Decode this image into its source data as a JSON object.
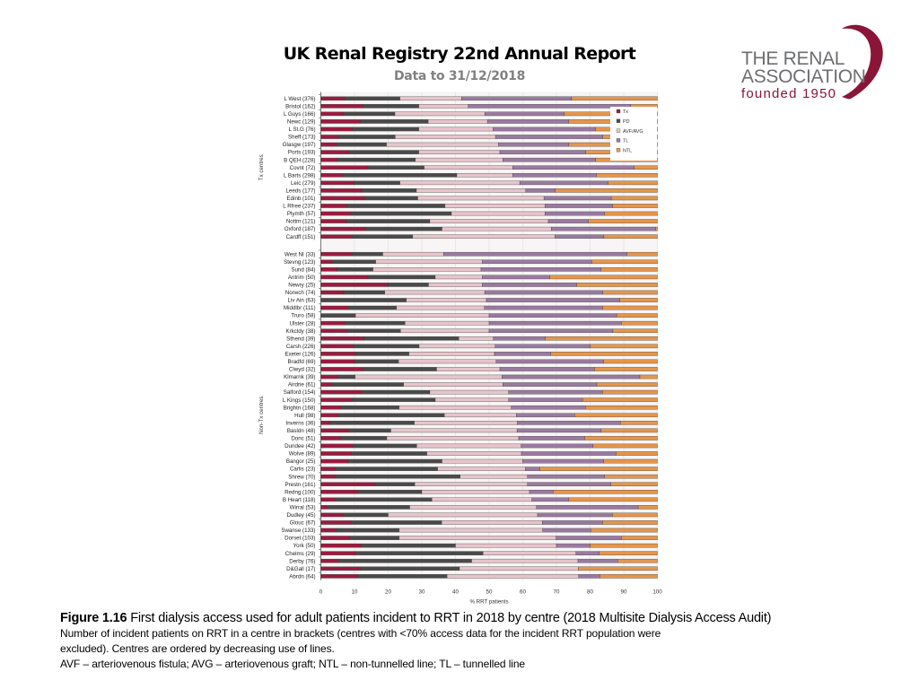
{
  "header": {
    "title": "UK Renal Registry 22nd Annual Report",
    "subtitle": "Data to 31/12/2018"
  },
  "logo": {
    "line1": "THE RENAL",
    "line2": "ASSOCIATION",
    "line3": "founded 1950"
  },
  "caption": {
    "figure_label": "Figure 1.16",
    "figure_title": " First dialysis access used for adult patients incident to RRT in 2018 by centre (2018 Multisite Dialysis Access Audit)",
    "line2": "Number of incident patients on RRT in a centre in brackets (centres with <70% access data for the incident RRT population were",
    "line3": "excluded). Centres are ordered by decreasing use of lines.",
    "line4": "AVF – arteriovenous fistula; AVG – arteriovenous graft; NTL – non-tunnelled line; TL – tunnelled line"
  },
  "chart_data": {
    "type": "bar",
    "orientation": "horizontal",
    "stacked": "100%",
    "title": "",
    "xlabel": "% RRT patients",
    "ylabel": "",
    "xlim": [
      0,
      100
    ],
    "xticks": [
      0,
      10,
      20,
      30,
      40,
      50,
      60,
      70,
      80,
      90,
      100
    ],
    "grid": true,
    "legend_position": "top-right",
    "series_names": [
      "Tx",
      "PD",
      "AVF/AVG",
      "TL",
      "NTL"
    ],
    "series_colors": {
      "Tx": "#9b1b3f",
      "PD": "#4a4a4a",
      "AVF/AVG": "#e8c4cb",
      "TL": "#9a7aa0",
      "NTL": "#e6954a"
    },
    "groups": [
      {
        "label": "Tx centres",
        "centres": [
          {
            "name": "L West (376)",
            "values": [
              7.1,
              16.4,
              18.3,
              32.7,
              25.5
            ]
          },
          {
            "name": "Bristol (162)",
            "values": [
              12.6,
              16.5,
              14.7,
              48.3,
              7.9
            ]
          },
          {
            "name": "L Guys (166)",
            "values": [
              6.8,
              15.2,
              26.7,
              23.6,
              27.7
            ]
          },
          {
            "name": "Newc (129)",
            "values": [
              11.8,
              20.1,
              17.6,
              24.2,
              26.3
            ]
          },
          {
            "name": "L St.G (76)",
            "values": [
              9.4,
              19.7,
              22.1,
              30.4,
              18.4
            ]
          },
          {
            "name": "Sheff (173)",
            "values": [
              5.3,
              16.8,
              29.8,
              31.9,
              16.2
            ]
          },
          {
            "name": "Glasgw (197)",
            "values": [
              4.7,
              14.8,
              33.3,
              20.9,
              26.3
            ]
          },
          {
            "name": "Ports (193)",
            "values": [
              8.4,
              20.7,
              24.1,
              25.5,
              21.3
            ]
          },
          {
            "name": "B QEH (228)",
            "values": [
              4.9,
              23.2,
              26.0,
              27.5,
              18.4
            ]
          },
          {
            "name": "Covnt (72)",
            "values": [
              14.0,
              16.7,
              26.3,
              36.1,
              6.9
            ]
          },
          {
            "name": "L Barts (298)",
            "values": [
              6.5,
              33.9,
              16.6,
              24.9,
              18.1
            ]
          },
          {
            "name": "Leic (279)",
            "values": [
              9.9,
              13.6,
              35.6,
              26.3,
              14.6
            ]
          },
          {
            "name": "Leeds (177)",
            "values": [
              12.0,
              16.4,
              32.5,
              8.8,
              30.3
            ]
          },
          {
            "name": "Edinb (101)",
            "values": [
              13.1,
              15.7,
              37.5,
              20.0,
              13.7
            ]
          },
          {
            "name": "L Rfree (237)",
            "values": [
              7.7,
              29.2,
              29.7,
              20.1,
              13.3
            ]
          },
          {
            "name": "Plymth (57)",
            "values": [
              8.9,
              29.9,
              27.8,
              17.7,
              15.7
            ]
          },
          {
            "name": "Nottm (121)",
            "values": [
              7.6,
              24.8,
              35.2,
              11.9,
              20.5
            ]
          },
          {
            "name": "Oxford (187)",
            "values": [
              13.4,
              22.6,
              32.5,
              31.0,
              0.5
            ]
          },
          {
            "name": "Cardff (151)",
            "values": [
              9.3,
              18.0,
              42.3,
              14.5,
              15.9
            ]
          }
        ]
      },
      {
        "label": "Non-Tx centres",
        "centres": [
          {
            "name": "West NI (33)",
            "values": [
              9.3,
              9.1,
              18.1,
              54.5,
              9.0
            ]
          },
          {
            "name": "Stevng (123)",
            "values": [
              3.3,
              13.0,
              31.7,
              32.5,
              19.5
            ]
          },
          {
            "name": "Sund (84)",
            "values": [
              4.8,
              10.7,
              32.1,
              35.7,
              16.7
            ]
          },
          {
            "name": "Antrim (50)",
            "values": [
              14.0,
              20.0,
              14.0,
              20.0,
              32.0
            ]
          },
          {
            "name": "Newry (25)",
            "values": [
              20.0,
              12.0,
              16.0,
              28.0,
              24.0
            ]
          },
          {
            "name": "Norwch (74)",
            "values": [
              6.8,
              12.2,
              29.7,
              35.1,
              16.2
            ]
          },
          {
            "name": "Liv Ain (63)",
            "values": [
              0.0,
              25.4,
              23.8,
              39.7,
              11.1
            ]
          },
          {
            "name": "Middlbr (111)",
            "values": [
              8.1,
              14.4,
              26.1,
              35.1,
              16.3
            ]
          },
          {
            "name": "Truro (58)",
            "values": [
              0.0,
              10.3,
              39.7,
              37.9,
              12.1
            ]
          },
          {
            "name": "Ulster (28)",
            "values": [
              7.1,
              17.9,
              25.0,
              39.3,
              10.7
            ]
          },
          {
            "name": "Krkcldy (38)",
            "values": [
              7.9,
              15.8,
              26.3,
              36.8,
              13.2
            ]
          },
          {
            "name": "Sthend (39)",
            "values": [
              12.8,
              28.2,
              10.3,
              15.4,
              33.3
            ]
          },
          {
            "name": "Carsh (226)",
            "values": [
              9.7,
              19.5,
              22.6,
              28.3,
              19.9
            ]
          },
          {
            "name": "Exeter (126)",
            "values": [
              10.3,
              15.9,
              25.4,
              16.7,
              31.7
            ]
          },
          {
            "name": "Bradfd (69)",
            "values": [
              10.1,
              13.0,
              29.0,
              31.9,
              16.0
            ]
          },
          {
            "name": "Clwyd (32)",
            "values": [
              12.5,
              21.9,
              18.8,
              28.1,
              18.7
            ]
          },
          {
            "name": "Klmarnk (39)",
            "values": [
              5.1,
              5.1,
              43.6,
              41.0,
              5.2
            ]
          },
          {
            "name": "Airdrie (61)",
            "values": [
              3.3,
              21.3,
              29.5,
              27.9,
              18.0
            ]
          },
          {
            "name": "Salford (154)",
            "values": [
              12.3,
              20.1,
              23.4,
              27.9,
              16.3
            ]
          },
          {
            "name": "L Kings (150)",
            "values": [
              9.3,
              24.7,
              21.8,
              22.0,
              22.2
            ]
          },
          {
            "name": "Brightn (168)",
            "values": [
              6.0,
              17.3,
              33.3,
              22.0,
              21.4
            ]
          },
          {
            "name": "Hull (98)",
            "values": [
              5.1,
              31.6,
              21.4,
              17.3,
              24.6
            ]
          },
          {
            "name": "Inverns (36)",
            "values": [
              2.8,
              25.0,
              30.6,
              30.6,
              11.0
            ]
          },
          {
            "name": "Basldn (48)",
            "values": [
              8.3,
              12.5,
              37.5,
              25.0,
              16.7
            ]
          },
          {
            "name": "Donc (51)",
            "values": [
              5.9,
              13.7,
              39.2,
              19.6,
              21.6
            ]
          },
          {
            "name": "Dundee (42)",
            "values": [
              9.5,
              19.0,
              31.0,
              21.4,
              19.1
            ]
          },
          {
            "name": "Wolve (89)",
            "values": [
              9.0,
              22.5,
              28.1,
              28.1,
              12.3
            ]
          },
          {
            "name": "Bangor (25)",
            "values": [
              8.0,
              28.0,
              24.0,
              24.0,
              16.0
            ]
          },
          {
            "name": "Carlis (23)",
            "values": [
              4.3,
              30.4,
              26.1,
              4.3,
              34.9
            ]
          },
          {
            "name": "Shrew (70)",
            "values": [
              4.3,
              37.1,
              20.0,
              22.9,
              15.7
            ]
          },
          {
            "name": "Prestn (161)",
            "values": [
              16.1,
              11.8,
              33.5,
              24.8,
              13.8
            ]
          },
          {
            "name": "Redng (100)",
            "values": [
              11.0,
              19.0,
              32.0,
              7.0,
              31.0
            ]
          },
          {
            "name": "B Heart (118)",
            "values": [
              4.2,
              28.8,
              29.7,
              11.0,
              26.3
            ]
          },
          {
            "name": "Wirral (53)",
            "values": [
              1.9,
              24.5,
              37.7,
              30.2,
              5.7
            ]
          },
          {
            "name": "Dudley (45)",
            "values": [
              6.7,
              13.3,
              44.4,
              22.2,
              13.4
            ]
          },
          {
            "name": "Glouc (67)",
            "values": [
              9.0,
              26.9,
              29.9,
              17.9,
              16.3
            ]
          },
          {
            "name": "Swanse (133)",
            "values": [
              4.5,
              18.8,
              42.6,
              14.3,
              19.8
            ]
          },
          {
            "name": "Dorset (103)",
            "values": [
              8.7,
              14.6,
              46.6,
              19.4,
              10.7
            ]
          },
          {
            "name": "York (50)",
            "values": [
              12.0,
              28.0,
              30.0,
              10.0,
              20.0
            ]
          },
          {
            "name": "Chelms (29)",
            "values": [
              10.3,
              37.9,
              27.6,
              6.9,
              17.3
            ]
          },
          {
            "name": "Derby (76)",
            "values": [
              5.3,
              39.5,
              31.6,
              11.8,
              11.8
            ]
          },
          {
            "name": "D&Gall (17)",
            "values": [
              11.8,
              29.4,
              35.3,
              0.0,
              23.5
            ]
          },
          {
            "name": "Abrdn (64)",
            "values": [
              10.9,
              26.6,
              39.1,
              6.3,
              17.1
            ]
          }
        ]
      }
    ]
  }
}
